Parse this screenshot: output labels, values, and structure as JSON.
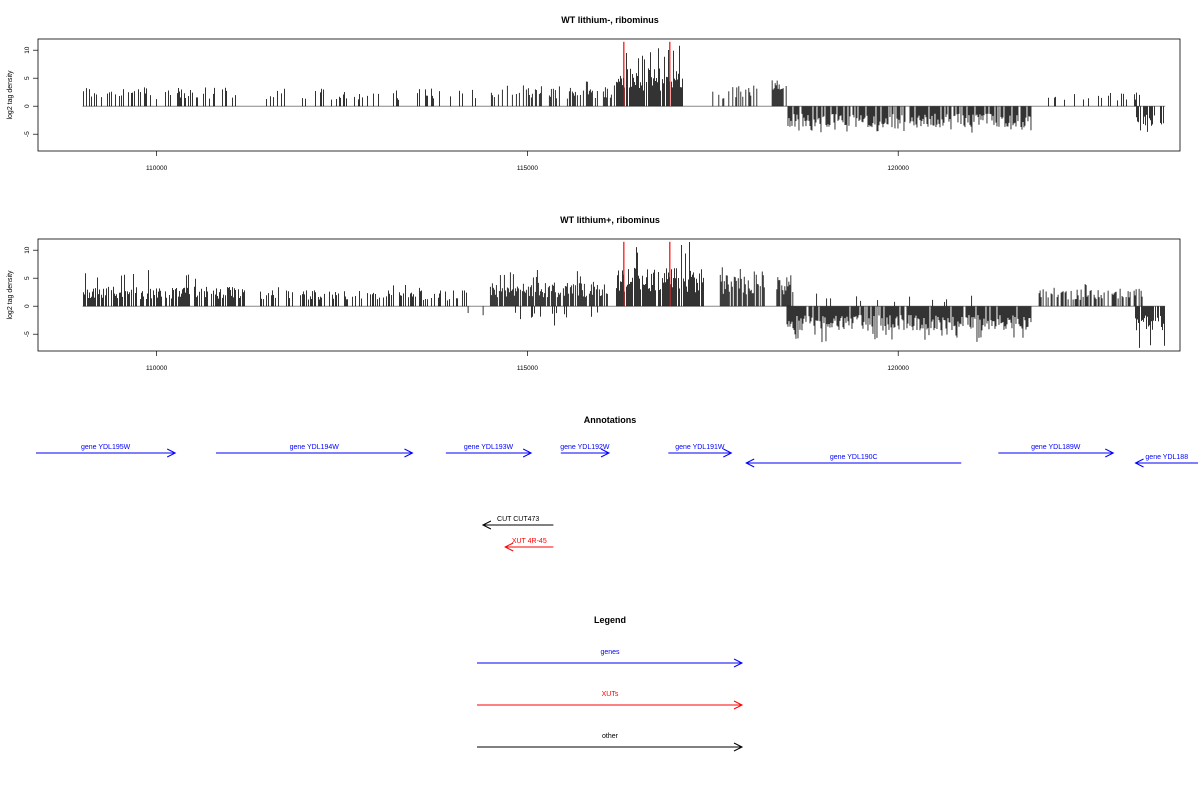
{
  "chart_data": [
    {
      "type": "bar",
      "title": "WT lithium-, ribominus",
      "xlabel": "",
      "ylabel": "log2 tag density",
      "xlim": [
        108400,
        123800
      ],
      "ylim": [
        -8,
        12
      ],
      "x_ticks": [
        110000,
        115000,
        120000
      ],
      "y_ticks": [
        10,
        5,
        0,
        -5
      ],
      "x_tick_labels": [
        "110000",
        "115000",
        "120000"
      ],
      "y_tick_labels": [
        "10",
        "5",
        "0",
        "-5"
      ],
      "grid": false,
      "series_segments": [
        {
          "name": "plus",
          "color": "#000000",
          "start": 109000,
          "end": 111100,
          "mean": 2.8,
          "max": 5.0,
          "density": 0.35
        },
        {
          "name": "plus",
          "color": "#000000",
          "start": 111400,
          "end": 114400,
          "mean": 2.5,
          "max": 3.5,
          "density": 0.18
        },
        {
          "name": "plus",
          "color": "#000000",
          "start": 114500,
          "end": 116200,
          "mean": 3.0,
          "max": 4.5,
          "density": 0.45
        },
        {
          "name": "plus",
          "color": "#000000",
          "start": 116200,
          "end": 117100,
          "mean": 5.5,
          "max": 11.0,
          "density": 0.85
        },
        {
          "name": "plus",
          "color": "#000000",
          "start": 117500,
          "end": 118100,
          "mean": 3.0,
          "max": 7.0,
          "density": 0.35
        },
        {
          "name": "plus",
          "color": "#000000",
          "start": 118300,
          "end": 118500,
          "mean": 4.0,
          "max": 7.5,
          "density": 0.85
        },
        {
          "name": "minus",
          "color": "#000000",
          "start": 118500,
          "end": 121800,
          "mean": -3.0,
          "max": -4.8,
          "density": 0.8
        },
        {
          "name": "plus",
          "color": "#000000",
          "start": 122000,
          "end": 123300,
          "mean": 2.2,
          "max": 3.5,
          "density": 0.25
        },
        {
          "name": "minus",
          "color": "#000000",
          "start": 123200,
          "end": 123600,
          "mean": -3.0,
          "max": -5.0,
          "density": 0.6
        }
      ],
      "markers": [
        {
          "x": 116300,
          "top": 11.5,
          "color": "#ff0000"
        },
        {
          "x": 116920,
          "top": 11.5,
          "color": "#ff0000"
        }
      ]
    },
    {
      "type": "bar",
      "title": "WT lithium+, ribominus",
      "xlabel": "",
      "ylabel": "log2 tag density",
      "xlim": [
        108400,
        123800
      ],
      "ylim": [
        -8,
        12
      ],
      "x_ticks": [
        110000,
        115000,
        120000
      ],
      "y_ticks": [
        10,
        5,
        0,
        -5
      ],
      "x_tick_labels": [
        "110000",
        "115000",
        "120000"
      ],
      "y_tick_labels": [
        "10",
        "5",
        "0",
        "-5"
      ],
      "grid": false,
      "series_segments": [
        {
          "name": "plus",
          "color": "#000000",
          "start": 109000,
          "end": 111200,
          "mean": 2.8,
          "max": 6.5,
          "density": 0.75
        },
        {
          "name": "plus",
          "color": "#000000",
          "start": 111400,
          "end": 114200,
          "mean": 2.3,
          "max": 4.0,
          "density": 0.45
        },
        {
          "name": "minus",
          "color": "#000000",
          "start": 114200,
          "end": 114600,
          "mean": -1.5,
          "max": -2.0,
          "density": 0.1
        },
        {
          "name": "plus",
          "color": "#000000",
          "start": 114500,
          "end": 116100,
          "mean": 3.5,
          "max": 6.5,
          "density": 0.85
        },
        {
          "name": "minus",
          "color": "#000000",
          "start": 114800,
          "end": 116000,
          "mean": -2.0,
          "max": -3.5,
          "density": 0.15
        },
        {
          "name": "plus",
          "color": "#000000",
          "start": 116200,
          "end": 117400,
          "mean": 5.5,
          "max": 11.5,
          "density": 0.9
        },
        {
          "name": "plus",
          "color": "#000000",
          "start": 117600,
          "end": 118200,
          "mean": 4.5,
          "max": 7.5,
          "density": 0.85
        },
        {
          "name": "plus",
          "color": "#000000",
          "start": 118350,
          "end": 118600,
          "mean": 4.5,
          "max": 7.0,
          "density": 0.85
        },
        {
          "name": "minus",
          "color": "#000000",
          "start": 118500,
          "end": 121800,
          "mean": -3.5,
          "max": -6.5,
          "density": 0.9
        },
        {
          "name": "plus",
          "color": "#000000",
          "start": 118900,
          "end": 121000,
          "mean": 1.5,
          "max": 2.5,
          "density": 0.08
        },
        {
          "name": "plus",
          "color": "#000000",
          "start": 121900,
          "end": 123300,
          "mean": 2.5,
          "max": 4.0,
          "density": 0.55
        },
        {
          "name": "minus",
          "color": "#000000",
          "start": 123200,
          "end": 123600,
          "mean": -3.5,
          "max": -7.5,
          "density": 0.8
        }
      ],
      "markers": [
        {
          "x": 116300,
          "top": 11.5,
          "color": "#ff0000"
        },
        {
          "x": 116920,
          "top": 11.5,
          "color": "#ff0000"
        }
      ]
    }
  ],
  "annotations": {
    "title": "Annotations",
    "items": [
      {
        "label": "gene YDL195W",
        "start": 107700,
        "end": 110250,
        "strand": "+",
        "row": 0,
        "color": "#0000ff"
      },
      {
        "label": "gene YDL194W",
        "start": 110800,
        "end": 113450,
        "strand": "+",
        "row": 0,
        "color": "#0000ff"
      },
      {
        "label": "gene YDL193W",
        "start": 113900,
        "end": 115050,
        "strand": "+",
        "row": 0,
        "color": "#0000ff"
      },
      {
        "label": "gene YDL192W",
        "start": 115450,
        "end": 116100,
        "strand": "+",
        "row": 0,
        "color": "#0000ff"
      },
      {
        "label": "gene YDL191W",
        "start": 116900,
        "end": 117750,
        "strand": "+",
        "row": 0,
        "color": "#0000ff"
      },
      {
        "label": "gene YDL190C",
        "start": 117950,
        "end": 120850,
        "strand": "-",
        "row": 1,
        "color": "#0000ff"
      },
      {
        "label": "gene YDL189W",
        "start": 121350,
        "end": 122900,
        "strand": "+",
        "row": 0,
        "color": "#0000ff"
      },
      {
        "label": "gene YDL188",
        "start": 123200,
        "end": 124100,
        "strand": "-",
        "row": 1,
        "color": "#0000ff"
      },
      {
        "label": "CUT CUT473",
        "start": 114400,
        "end": 115350,
        "strand": "-",
        "row": 2,
        "color": "#000000"
      },
      {
        "label": "XUT 4R-45",
        "start": 114700,
        "end": 115350,
        "strand": "-",
        "row": 3,
        "color": "#ff0000"
      }
    ]
  },
  "legend": {
    "title": "Legend",
    "items": [
      {
        "label": "genes",
        "color": "#0000ff"
      },
      {
        "label": "XUTs",
        "color": "#ff0000"
      },
      {
        "label": "other",
        "color": "#000000"
      }
    ]
  }
}
